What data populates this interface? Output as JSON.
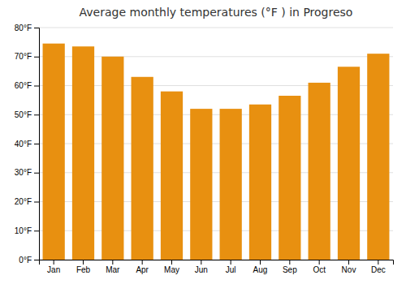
{
  "chart_data": {
    "type": "bar",
    "title": "Average monthly temperatures (°F ) in Progreso",
    "categories": [
      "Jan",
      "Feb",
      "Mar",
      "Apr",
      "May",
      "Jun",
      "Jul",
      "Aug",
      "Sep",
      "Oct",
      "Nov",
      "Dec"
    ],
    "values": [
      74.5,
      73.5,
      70.0,
      63.0,
      58.0,
      52.0,
      52.0,
      53.5,
      56.5,
      61.0,
      66.5,
      71.0
    ],
    "color": "#E89010",
    "ylim": [
      0,
      80
    ],
    "yticks": [
      {
        "value": 0,
        "label": "0°F"
      },
      {
        "value": 10,
        "label": "10°F"
      },
      {
        "value": 20,
        "label": "20°F"
      },
      {
        "value": 30,
        "label": "30°F"
      },
      {
        "value": 40,
        "label": "40°F"
      },
      {
        "value": 50,
        "label": "50°F"
      },
      {
        "value": 60,
        "label": "60°F"
      },
      {
        "value": 70,
        "label": "70°F"
      },
      {
        "value": 80,
        "label": "80°F"
      }
    ],
    "grid": true
  }
}
